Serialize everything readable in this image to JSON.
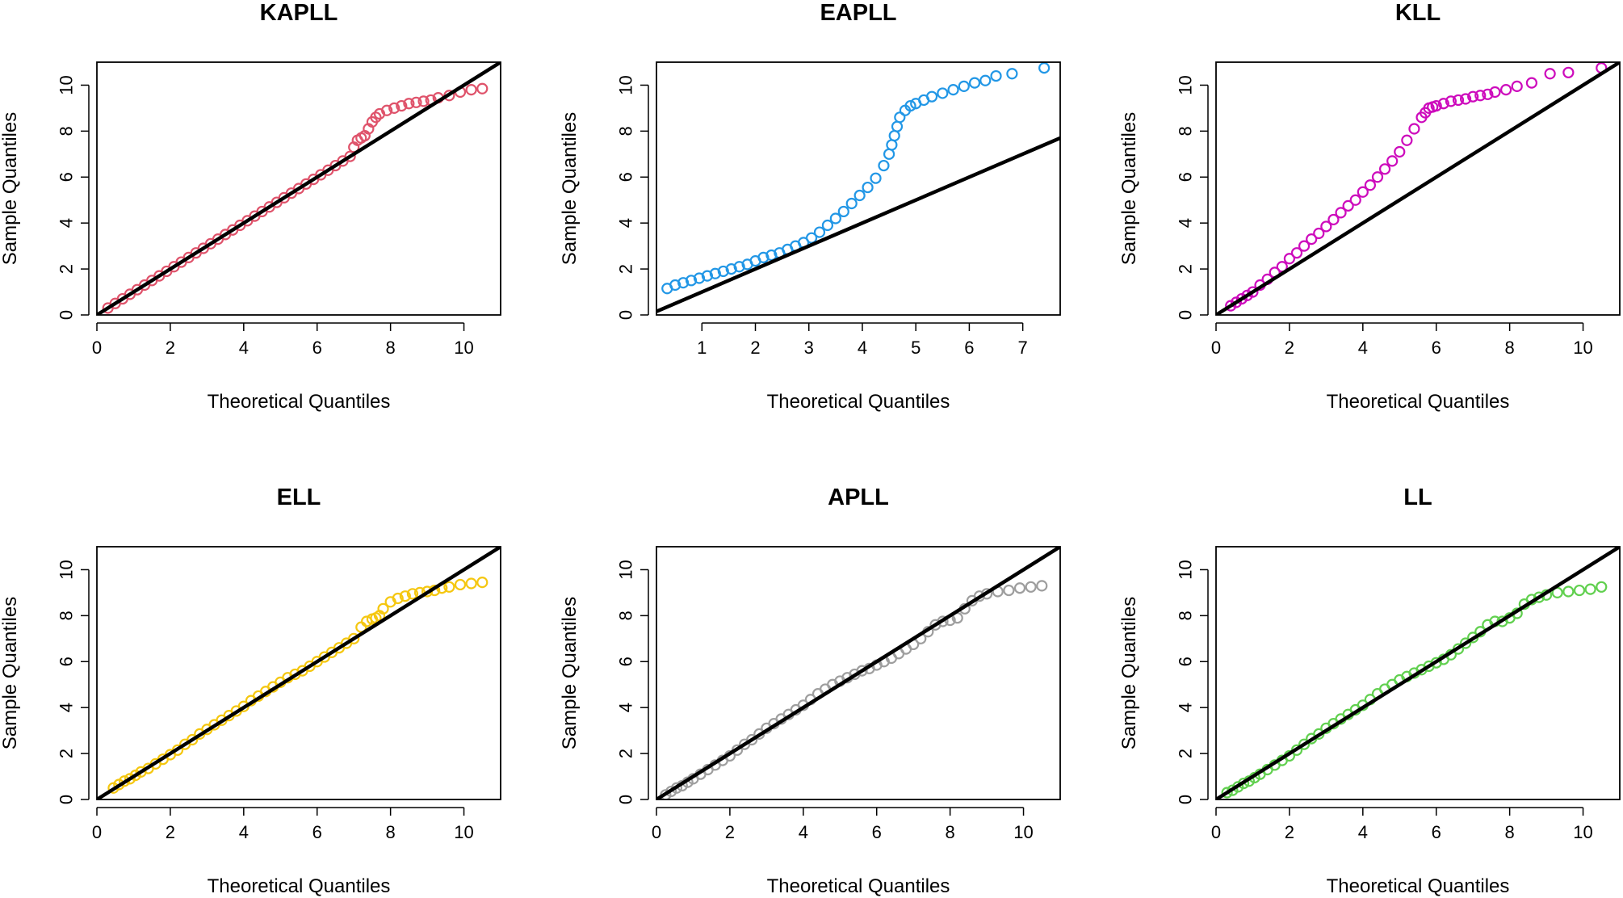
{
  "figure": {
    "background": "#ffffff"
  },
  "chart_data": [
    {
      "type": "scatter",
      "title": "KAPLL",
      "xlabel": "Theoretical Quantiles",
      "ylabel": "Sample Quantiles",
      "xlim": [
        0,
        11
      ],
      "ylim": [
        0,
        11
      ],
      "xticks": [
        0,
        2,
        4,
        6,
        8,
        10
      ],
      "yticks": [
        0,
        2,
        4,
        6,
        8,
        10
      ],
      "color": "#DF536B",
      "reference_line": {
        "intercept": 0,
        "slope": 1
      },
      "points": {
        "x": [
          0.3,
          0.5,
          0.7,
          0.9,
          1.1,
          1.3,
          1.5,
          1.7,
          1.9,
          2.1,
          2.3,
          2.5,
          2.7,
          2.9,
          3.1,
          3.3,
          3.5,
          3.7,
          3.9,
          4.1,
          4.3,
          4.5,
          4.7,
          4.9,
          5.1,
          5.3,
          5.5,
          5.7,
          5.9,
          6.1,
          6.3,
          6.5,
          6.7,
          6.9,
          7.0,
          7.1,
          7.2,
          7.3,
          7.4,
          7.5,
          7.6,
          7.7,
          7.9,
          8.1,
          8.3,
          8.5,
          8.7,
          8.9,
          9.1,
          9.3,
          9.6,
          9.9,
          10.2,
          10.5
        ],
        "y": [
          0.3,
          0.5,
          0.7,
          0.9,
          1.1,
          1.3,
          1.5,
          1.7,
          1.9,
          2.1,
          2.3,
          2.5,
          2.7,
          2.9,
          3.1,
          3.3,
          3.5,
          3.7,
          3.9,
          4.1,
          4.3,
          4.5,
          4.7,
          4.9,
          5.1,
          5.3,
          5.5,
          5.7,
          5.9,
          6.1,
          6.3,
          6.5,
          6.7,
          6.9,
          7.3,
          7.6,
          7.7,
          7.8,
          8.1,
          8.4,
          8.6,
          8.75,
          8.9,
          9.0,
          9.1,
          9.2,
          9.25,
          9.3,
          9.35,
          9.45,
          9.55,
          9.7,
          9.8,
          9.85
        ]
      }
    },
    {
      "type": "scatter",
      "title": "EAPLL",
      "xlabel": "Theoretical Quantiles",
      "ylabel": "Sample Quantiles",
      "xlim": [
        0.15,
        7.7
      ],
      "ylim": [
        0,
        11
      ],
      "xticks": [
        1,
        2,
        3,
        4,
        5,
        6,
        7
      ],
      "yticks": [
        0,
        2,
        4,
        6,
        8,
        10
      ],
      "color": "#2297E6",
      "reference_line": {
        "intercept": 0,
        "slope": 1
      },
      "points": {
        "x": [
          0.35,
          0.5,
          0.65,
          0.8,
          0.95,
          1.1,
          1.25,
          1.4,
          1.55,
          1.7,
          1.85,
          2.0,
          2.15,
          2.3,
          2.45,
          2.6,
          2.75,
          2.9,
          3.05,
          3.2,
          3.35,
          3.5,
          3.65,
          3.8,
          3.95,
          4.1,
          4.25,
          4.4,
          4.5,
          4.55,
          4.6,
          4.65,
          4.7,
          4.8,
          4.9,
          5.0,
          5.15,
          5.3,
          5.5,
          5.7,
          5.9,
          6.1,
          6.3,
          6.5,
          6.8,
          7.4
        ],
        "y": [
          1.15,
          1.3,
          1.4,
          1.5,
          1.6,
          1.7,
          1.8,
          1.9,
          2.0,
          2.1,
          2.2,
          2.35,
          2.5,
          2.6,
          2.7,
          2.85,
          3.0,
          3.15,
          3.35,
          3.6,
          3.9,
          4.2,
          4.5,
          4.85,
          5.2,
          5.55,
          5.95,
          6.5,
          7.0,
          7.4,
          7.8,
          8.2,
          8.6,
          8.9,
          9.1,
          9.2,
          9.35,
          9.5,
          9.65,
          9.8,
          9.95,
          10.1,
          10.2,
          10.4,
          10.5,
          10.75
        ]
      }
    },
    {
      "type": "scatter",
      "title": "KLL",
      "xlabel": "Theoretical Quantiles",
      "ylabel": "Sample Quantiles",
      "xlim": [
        0,
        11
      ],
      "ylim": [
        0,
        11
      ],
      "xticks": [
        0,
        2,
        4,
        6,
        8,
        10
      ],
      "yticks": [
        0,
        2,
        4,
        6,
        8,
        10
      ],
      "color": "#CD0BBC",
      "reference_line": {
        "intercept": 0,
        "slope": 1
      },
      "points": {
        "x": [
          0.4,
          0.55,
          0.7,
          0.85,
          1.0,
          1.2,
          1.4,
          1.6,
          1.8,
          2.0,
          2.2,
          2.4,
          2.6,
          2.8,
          3.0,
          3.2,
          3.4,
          3.6,
          3.8,
          4.0,
          4.2,
          4.4,
          4.6,
          4.8,
          5.0,
          5.2,
          5.4,
          5.6,
          5.7,
          5.8,
          5.9,
          6.0,
          6.2,
          6.4,
          6.6,
          6.8,
          7.0,
          7.2,
          7.4,
          7.6,
          7.9,
          8.2,
          8.6,
          9.1,
          9.6,
          10.5
        ],
        "y": [
          0.4,
          0.55,
          0.7,
          0.85,
          1.0,
          1.3,
          1.55,
          1.85,
          2.1,
          2.45,
          2.7,
          3.0,
          3.3,
          3.55,
          3.85,
          4.15,
          4.45,
          4.75,
          5.0,
          5.35,
          5.65,
          6.0,
          6.35,
          6.7,
          7.1,
          7.6,
          8.1,
          8.6,
          8.8,
          9.0,
          9.05,
          9.1,
          9.2,
          9.3,
          9.35,
          9.4,
          9.5,
          9.55,
          9.6,
          9.7,
          9.8,
          9.95,
          10.1,
          10.5,
          10.55,
          10.75
        ]
      }
    },
    {
      "type": "scatter",
      "title": "ELL",
      "xlabel": "Theoretical Quantiles",
      "ylabel": "Sample Quantiles",
      "xlim": [
        0,
        11
      ],
      "ylim": [
        0,
        11
      ],
      "xticks": [
        0,
        2,
        4,
        6,
        8,
        10
      ],
      "yticks": [
        0,
        2,
        4,
        6,
        8,
        10
      ],
      "color": "#F5C710",
      "reference_line": {
        "intercept": 0,
        "slope": 1
      },
      "points": {
        "x": [
          0.45,
          0.6,
          0.75,
          0.9,
          1.05,
          1.2,
          1.4,
          1.6,
          1.8,
          2.0,
          2.2,
          2.4,
          2.6,
          2.8,
          3.0,
          3.2,
          3.4,
          3.6,
          3.8,
          4.0,
          4.2,
          4.4,
          4.6,
          4.8,
          5.0,
          5.2,
          5.4,
          5.6,
          5.8,
          6.0,
          6.2,
          6.4,
          6.6,
          6.8,
          7.0,
          7.2,
          7.35,
          7.5,
          7.6,
          7.7,
          7.8,
          8.0,
          8.2,
          8.4,
          8.6,
          8.8,
          9.0,
          9.2,
          9.4,
          9.6,
          9.9,
          10.2,
          10.5
        ],
        "y": [
          0.5,
          0.65,
          0.8,
          0.9,
          1.05,
          1.2,
          1.35,
          1.55,
          1.75,
          1.95,
          2.15,
          2.4,
          2.6,
          2.85,
          3.05,
          3.25,
          3.45,
          3.65,
          3.85,
          4.05,
          4.3,
          4.5,
          4.7,
          4.9,
          5.1,
          5.3,
          5.45,
          5.6,
          5.8,
          6.0,
          6.2,
          6.4,
          6.6,
          6.8,
          7.0,
          7.5,
          7.75,
          7.85,
          7.9,
          8.0,
          8.3,
          8.6,
          8.75,
          8.85,
          8.95,
          9.0,
          9.05,
          9.1,
          9.2,
          9.25,
          9.35,
          9.4,
          9.45
        ]
      }
    },
    {
      "type": "scatter",
      "title": "APLL",
      "xlabel": "Theoretical Quantiles",
      "ylabel": "Sample Quantiles",
      "xlim": [
        0,
        11
      ],
      "ylim": [
        0,
        11
      ],
      "xticks": [
        0,
        2,
        4,
        6,
        8,
        10
      ],
      "yticks": [
        0,
        2,
        4,
        6,
        8,
        10
      ],
      "color": "#9E9E9E",
      "reference_line": {
        "intercept": 0,
        "slope": 1
      },
      "points": {
        "x": [
          0.25,
          0.4,
          0.55,
          0.7,
          0.85,
          1.0,
          1.2,
          1.4,
          1.6,
          1.8,
          2.0,
          2.2,
          2.4,
          2.6,
          2.8,
          3.0,
          3.2,
          3.4,
          3.6,
          3.8,
          4.0,
          4.2,
          4.4,
          4.6,
          4.8,
          5.0,
          5.2,
          5.4,
          5.6,
          5.8,
          6.0,
          6.2,
          6.4,
          6.6,
          6.8,
          7.0,
          7.2,
          7.4,
          7.6,
          7.8,
          8.0,
          8.2,
          8.4,
          8.6,
          8.8,
          9.0,
          9.3,
          9.6,
          9.9,
          10.2,
          10.5
        ],
        "y": [
          0.2,
          0.35,
          0.5,
          0.6,
          0.75,
          0.9,
          1.1,
          1.3,
          1.5,
          1.7,
          1.9,
          2.15,
          2.4,
          2.6,
          2.85,
          3.1,
          3.3,
          3.5,
          3.7,
          3.9,
          4.1,
          4.35,
          4.6,
          4.8,
          5.0,
          5.15,
          5.3,
          5.45,
          5.6,
          5.7,
          5.85,
          6.0,
          6.15,
          6.35,
          6.55,
          6.75,
          7.0,
          7.3,
          7.6,
          7.75,
          7.8,
          7.9,
          8.3,
          8.65,
          8.85,
          8.95,
          9.05,
          9.1,
          9.2,
          9.25,
          9.3
        ]
      }
    },
    {
      "type": "scatter",
      "title": "LL",
      "xlabel": "Theoretical Quantiles",
      "ylabel": "Sample Quantiles",
      "xlim": [
        0,
        11
      ],
      "ylim": [
        0,
        11
      ],
      "xticks": [
        0,
        2,
        4,
        6,
        8,
        10
      ],
      "yticks": [
        0,
        2,
        4,
        6,
        8,
        10
      ],
      "color": "#61D04F",
      "reference_line": {
        "intercept": 0,
        "slope": 1
      },
      "points": {
        "x": [
          0.3,
          0.45,
          0.6,
          0.75,
          0.9,
          1.05,
          1.2,
          1.4,
          1.6,
          1.8,
          2.0,
          2.2,
          2.4,
          2.6,
          2.8,
          3.0,
          3.2,
          3.4,
          3.6,
          3.8,
          4.0,
          4.2,
          4.4,
          4.6,
          4.8,
          5.0,
          5.2,
          5.4,
          5.6,
          5.8,
          6.0,
          6.2,
          6.4,
          6.6,
          6.8,
          7.0,
          7.2,
          7.4,
          7.6,
          7.8,
          8.0,
          8.2,
          8.4,
          8.6,
          8.8,
          9.0,
          9.3,
          9.6,
          9.9,
          10.2,
          10.5
        ],
        "y": [
          0.3,
          0.4,
          0.55,
          0.7,
          0.8,
          0.95,
          1.1,
          1.3,
          1.5,
          1.7,
          1.9,
          2.15,
          2.4,
          2.65,
          2.85,
          3.1,
          3.3,
          3.5,
          3.7,
          3.9,
          4.1,
          4.35,
          4.6,
          4.8,
          5.0,
          5.2,
          5.35,
          5.5,
          5.65,
          5.8,
          5.95,
          6.1,
          6.3,
          6.55,
          6.8,
          7.05,
          7.3,
          7.6,
          7.75,
          7.75,
          7.9,
          8.1,
          8.5,
          8.7,
          8.8,
          8.9,
          9.0,
          9.05,
          9.1,
          9.15,
          9.25
        ]
      }
    }
  ]
}
